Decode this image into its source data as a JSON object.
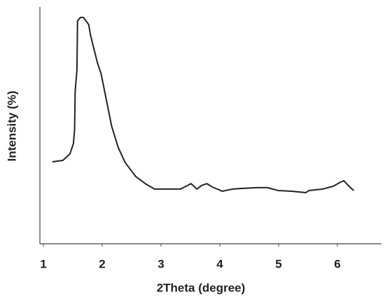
{
  "chart_data": {
    "type": "line",
    "x_label": "2Theta (degree)",
    "y_label": "Intensity (%)",
    "xlim": [
      0.94,
      6.75
    ],
    "xticks": [
      1,
      2,
      3,
      4,
      5,
      6
    ],
    "ylim": [
      0,
      100
    ],
    "series": [
      {
        "name": "Intensity",
        "color": "#222222",
        "x": [
          1.15,
          1.33,
          1.45,
          1.51,
          1.53,
          1.54,
          1.57,
          1.58,
          1.63,
          1.68,
          1.77,
          1.8,
          1.86,
          1.92,
          1.98,
          2.04,
          2.1,
          2.16,
          2.27,
          2.39,
          2.57,
          2.75,
          2.89,
          3.1,
          3.33,
          3.45,
          3.51,
          3.61,
          3.69,
          3.78,
          3.87,
          4.04,
          4.22,
          4.4,
          4.63,
          4.81,
          4.99,
          5.22,
          5.46,
          5.52,
          5.75,
          5.93,
          6.05,
          6.11,
          6.22,
          6.28
        ],
        "values": [
          34.6,
          35.2,
          37.9,
          42.3,
          48.2,
          64.5,
          73.4,
          94.1,
          95.6,
          95.6,
          92.6,
          88.2,
          82.2,
          76.3,
          71.9,
          64.5,
          57.1,
          49.7,
          40.8,
          34.3,
          28.4,
          25.1,
          23.1,
          23.1,
          23.1,
          24.6,
          25.4,
          23.1,
          24.6,
          25.4,
          24.0,
          22.2,
          23.1,
          23.4,
          23.7,
          23.7,
          22.5,
          22.2,
          21.6,
          22.5,
          23.1,
          24.3,
          26.0,
          26.6,
          23.7,
          22.5
        ]
      }
    ]
  }
}
